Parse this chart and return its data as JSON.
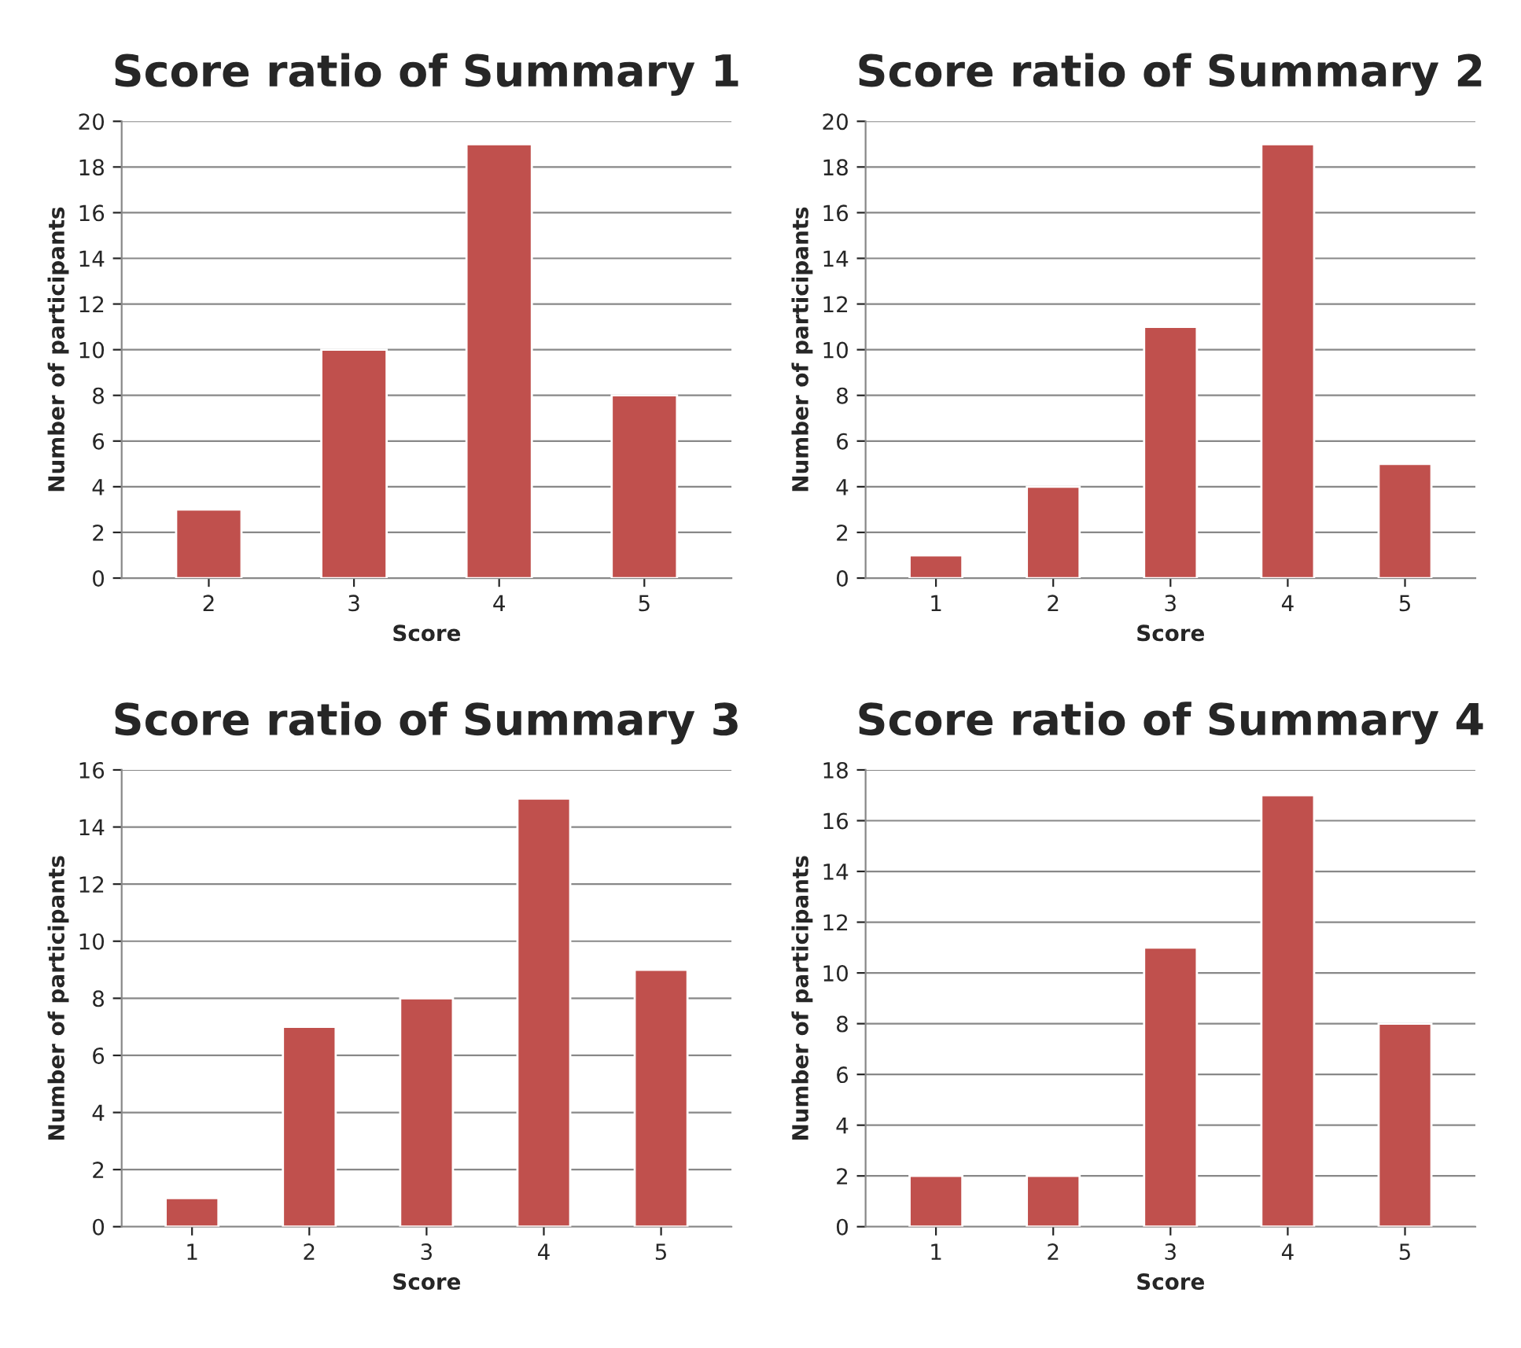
{
  "chart_data": [
    {
      "type": "bar",
      "title": "Score ratio of Summary 1",
      "xlabel": "Score",
      "ylabel": "Number of participants",
      "categories": [
        "2",
        "3",
        "4",
        "5"
      ],
      "values": [
        3,
        10,
        19,
        8
      ],
      "color": "#c0504d",
      "ylim": [
        0,
        20
      ],
      "yticks": [
        0,
        2,
        4,
        6,
        8,
        10,
        12,
        14,
        16,
        18,
        20
      ],
      "grid": "y"
    },
    {
      "type": "bar",
      "title": "Score ratio of Summary 2",
      "xlabel": "Score",
      "ylabel": "Number of participants",
      "categories": [
        "1",
        "2",
        "3",
        "4",
        "5"
      ],
      "values": [
        1,
        4,
        11,
        19,
        5
      ],
      "color": "#c0504d",
      "ylim": [
        0,
        20
      ],
      "yticks": [
        0,
        2,
        4,
        6,
        8,
        10,
        12,
        14,
        16,
        18,
        20
      ],
      "grid": "y"
    },
    {
      "type": "bar",
      "title": "Score ratio of Summary 3",
      "xlabel": "Score",
      "ylabel": "Number of participants",
      "categories": [
        "1",
        "2",
        "3",
        "4",
        "5"
      ],
      "values": [
        1,
        7,
        8,
        15,
        9
      ],
      "color": "#c0504d",
      "ylim": [
        0,
        16
      ],
      "yticks": [
        0,
        2,
        4,
        6,
        8,
        10,
        12,
        14,
        16
      ],
      "grid": "y"
    },
    {
      "type": "bar",
      "title": "Score ratio of Summary 4",
      "xlabel": "Score",
      "ylabel": "Number of participants",
      "categories": [
        "1",
        "2",
        "3",
        "4",
        "5"
      ],
      "values": [
        2,
        2,
        11,
        17,
        8
      ],
      "color": "#c0504d",
      "ylim": [
        0,
        18
      ],
      "yticks": [
        0,
        2,
        4,
        6,
        8,
        10,
        12,
        14,
        16,
        18
      ],
      "grid": "y"
    }
  ]
}
